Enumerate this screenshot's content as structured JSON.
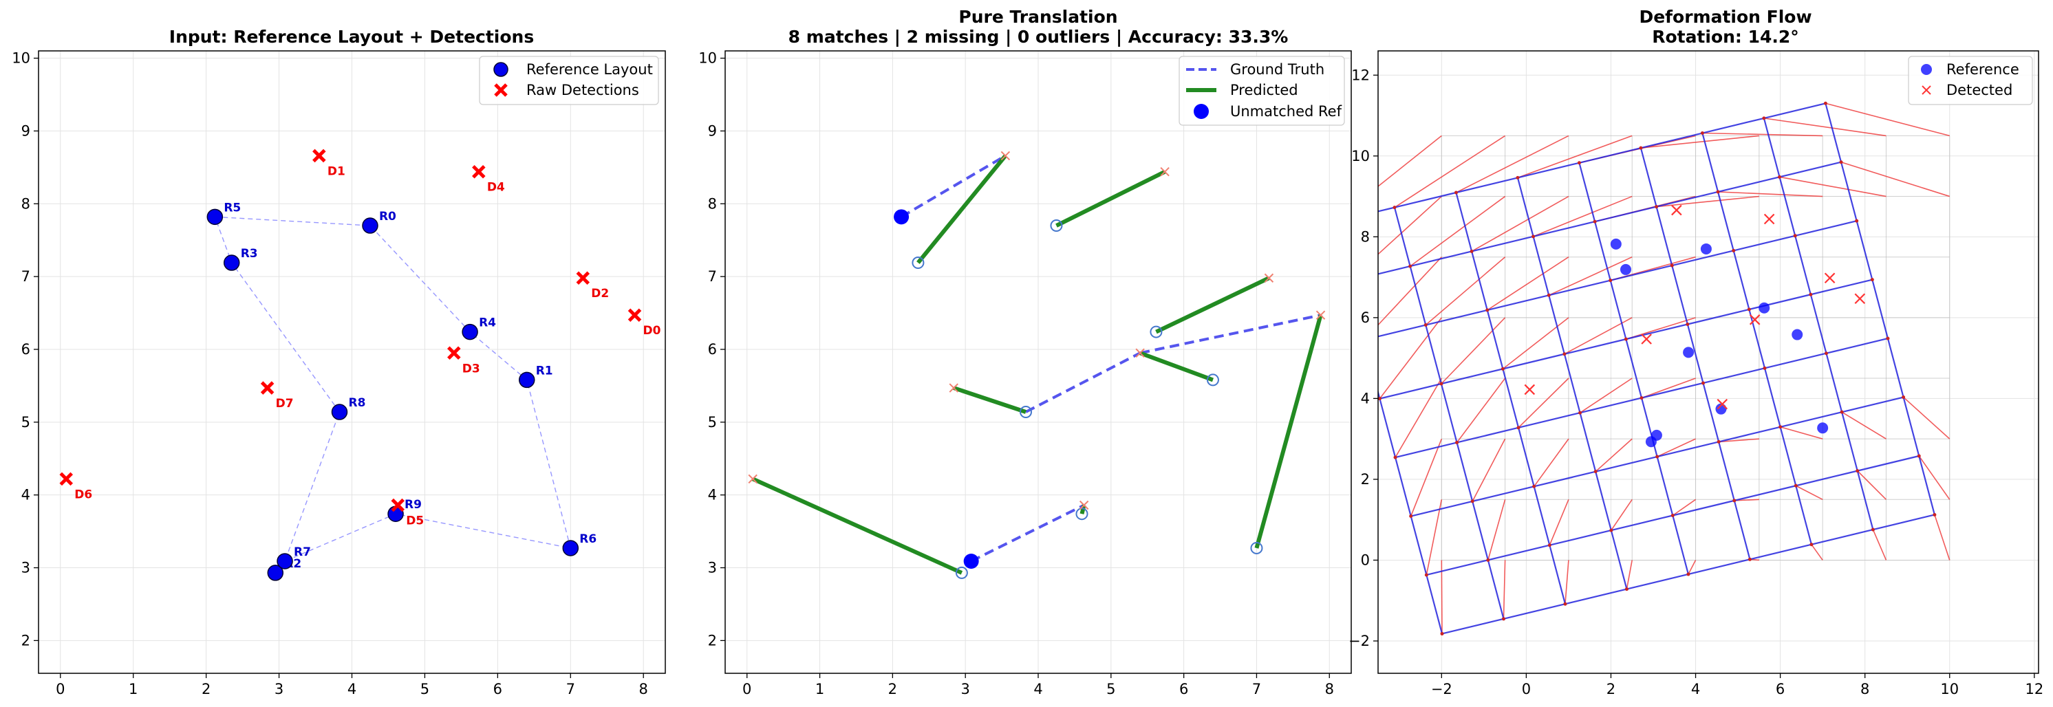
{
  "chart_data": [
    {
      "type": "scatter",
      "title": "Input: Reference Layout + Detections",
      "xlim": [
        -0.3,
        8.3
      ],
      "ylim": [
        1.55,
        10.1
      ],
      "xticks": [
        0,
        1,
        2,
        3,
        4,
        5,
        6,
        7,
        8
      ],
      "yticks": [
        2,
        3,
        4,
        5,
        6,
        7,
        8,
        9,
        10
      ],
      "grid": true,
      "legend_position": "top-right",
      "legend": [
        "Reference Layout",
        "Raw Detections"
      ],
      "reference": [
        {
          "label": "R0",
          "x": 4.25,
          "y": 7.7
        },
        {
          "label": "R1",
          "x": 6.4,
          "y": 5.58
        },
        {
          "label": "R2",
          "x": 2.95,
          "y": 2.93
        },
        {
          "label": "R3",
          "x": 2.35,
          "y": 7.19
        },
        {
          "label": "R4",
          "x": 5.62,
          "y": 6.24
        },
        {
          "label": "R5",
          "x": 2.12,
          "y": 7.82
        },
        {
          "label": "R6",
          "x": 7.0,
          "y": 3.27
        },
        {
          "label": "R7",
          "x": 3.08,
          "y": 3.09
        },
        {
          "label": "R8",
          "x": 3.83,
          "y": 5.14
        },
        {
          "label": "R9",
          "x": 4.6,
          "y": 3.74
        }
      ],
      "dashed_path_order": [
        "R5",
        "R0",
        "R4",
        "R1",
        "R6",
        "R9",
        "R7",
        "R8",
        "R3",
        "R5"
      ],
      "detections": [
        {
          "label": "D0",
          "x": 7.88,
          "y": 6.47
        },
        {
          "label": "D1",
          "x": 3.55,
          "y": 8.66
        },
        {
          "label": "D2",
          "x": 7.17,
          "y": 6.98
        },
        {
          "label": "D3",
          "x": 5.4,
          "y": 5.95
        },
        {
          "label": "D4",
          "x": 5.74,
          "y": 8.44
        },
        {
          "label": "D5",
          "x": 4.63,
          "y": 3.86
        },
        {
          "label": "D6",
          "x": 0.08,
          "y": 4.22
        },
        {
          "label": "D7",
          "x": 2.84,
          "y": 5.47
        }
      ]
    },
    {
      "type": "line",
      "title": "Pure Translation",
      "subtitle": "8 matches | 2 missing | 0 outliers | Accuracy: 33.3%",
      "xlim": [
        -0.3,
        8.3
      ],
      "ylim": [
        1.55,
        10.1
      ],
      "xticks": [
        0,
        1,
        2,
        3,
        4,
        5,
        6,
        7,
        8
      ],
      "yticks": [
        2,
        3,
        4,
        5,
        6,
        7,
        8,
        9,
        10
      ],
      "grid": true,
      "legend_position": "top-right",
      "legend": [
        "Ground Truth",
        "Predicted",
        "Unmatched Ref"
      ],
      "ground_truth": [
        {
          "from": [
            2.12,
            7.82
          ],
          "to": [
            3.55,
            8.66
          ]
        },
        {
          "from": [
            3.83,
            5.14
          ],
          "to": [
            5.4,
            5.95
          ]
        },
        {
          "from": [
            5.4,
            5.95
          ],
          "to": [
            7.88,
            6.47
          ]
        },
        {
          "from": [
            3.08,
            3.09
          ],
          "to": [
            4.63,
            3.86
          ]
        }
      ],
      "predicted": [
        {
          "from": [
            2.35,
            7.19
          ],
          "to": [
            3.55,
            8.66
          ]
        },
        {
          "from": [
            4.25,
            7.7
          ],
          "to": [
            5.74,
            8.44
          ]
        },
        {
          "from": [
            5.62,
            6.24
          ],
          "to": [
            7.17,
            6.98
          ]
        },
        {
          "from": [
            6.4,
            5.58
          ],
          "to": [
            5.4,
            5.95
          ]
        },
        {
          "from": [
            3.83,
            5.14
          ],
          "to": [
            2.84,
            5.47
          ]
        },
        {
          "from": [
            7.0,
            3.27
          ],
          "to": [
            7.88,
            6.47
          ]
        },
        {
          "from": [
            2.95,
            2.93
          ],
          "to": [
            0.08,
            4.22
          ]
        },
        {
          "from": [
            4.6,
            3.74
          ],
          "to": [
            4.63,
            3.86
          ]
        }
      ],
      "matched_reference": [
        [
          2.35,
          7.19
        ],
        [
          4.25,
          7.7
        ],
        [
          5.62,
          6.24
        ],
        [
          6.4,
          5.58
        ],
        [
          3.83,
          5.14
        ],
        [
          7.0,
          3.27
        ],
        [
          2.95,
          2.93
        ],
        [
          4.6,
          3.74
        ]
      ],
      "unmatched_reference": [
        [
          2.12,
          7.82
        ],
        [
          3.08,
          3.09
        ]
      ],
      "detection_markers": [
        [
          3.55,
          8.66
        ],
        [
          5.74,
          8.44
        ],
        [
          7.17,
          6.98
        ],
        [
          7.88,
          6.47
        ],
        [
          5.4,
          5.95
        ],
        [
          2.84,
          5.47
        ],
        [
          0.08,
          4.22
        ],
        [
          4.63,
          3.86
        ]
      ]
    },
    {
      "type": "scatter",
      "title": "Deformation Flow",
      "subtitle": "Rotation: 14.2°",
      "xlim": [
        -3.5,
        12.1
      ],
      "ylim": [
        -2.8,
        12.6
      ],
      "xticks": [
        -2,
        0,
        2,
        4,
        6,
        8,
        10,
        12
      ],
      "yticks": [
        -2,
        0,
        2,
        4,
        6,
        8,
        10,
        12
      ],
      "grid": true,
      "legend_position": "top-right",
      "legend": [
        "Reference",
        "Detected"
      ],
      "reference": [
        [
          2.12,
          7.82
        ],
        [
          2.35,
          7.19
        ],
        [
          4.25,
          7.7
        ],
        [
          3.83,
          5.14
        ],
        [
          5.62,
          6.24
        ],
        [
          6.4,
          5.58
        ],
        [
          4.6,
          3.74
        ],
        [
          7.0,
          3.27
        ],
        [
          2.95,
          2.93
        ],
        [
          3.08,
          3.09
        ]
      ],
      "detected": [
        [
          3.55,
          8.66
        ],
        [
          5.74,
          8.44
        ],
        [
          7.17,
          6.98
        ],
        [
          7.88,
          6.47
        ],
        [
          5.4,
          5.95
        ],
        [
          2.84,
          5.47
        ],
        [
          0.08,
          4.22
        ],
        [
          4.63,
          3.86
        ]
      ],
      "rotation_deg": 14.2,
      "grid_x_range": [
        -2,
        10
      ],
      "grid_y_range": [
        0,
        10.5
      ],
      "grid_step": 1.5,
      "grid_translation": [
        -0.05,
        -1.33
      ]
    }
  ]
}
